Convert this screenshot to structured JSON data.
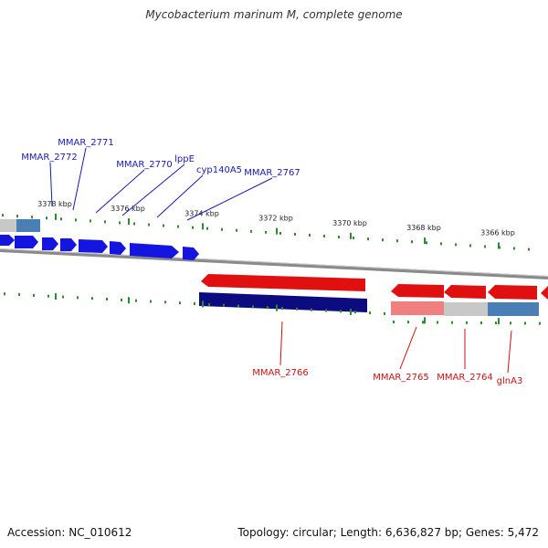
{
  "title": "Mycobacterium marinum M, complete genome",
  "footer": {
    "accession": "Accession: NC_010612",
    "summary": "Topology: circular; Length: 6,636,827 bp; Genes: 5,472"
  },
  "colors": {
    "forward_gene": "#1111dd",
    "reverse_gene": "#e01010",
    "forward_label": "#1a1ab0",
    "reverse_label": "#cc1111",
    "tick": "#2e8b2e",
    "backbone": "#888888"
  },
  "ticks": [
    {
      "label": "3378 kbp"
    },
    {
      "label": "3376 kbp"
    },
    {
      "label": "3374 kbp"
    },
    {
      "label": "3372 kbp"
    },
    {
      "label": "3370 kbp"
    },
    {
      "label": "3368 kbp"
    },
    {
      "label": "3366 kbp"
    }
  ],
  "forward_labels": [
    "MMAR_2772",
    "MMAR_2771",
    "MMAR_2770",
    "lppE",
    "cyp140A5",
    "MMAR_2767"
  ],
  "reverse_labels": [
    "MMAR_2766",
    "MMAR_2765",
    "MMAR_2764",
    "glnA3"
  ]
}
